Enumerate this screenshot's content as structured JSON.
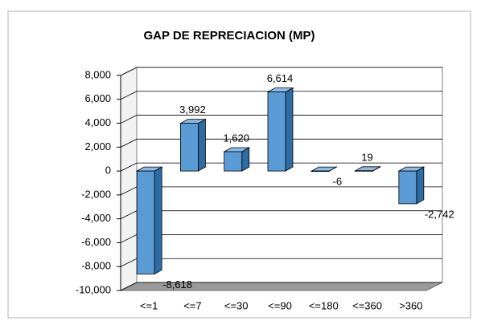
{
  "chart_data": {
    "type": "bar",
    "title": "GAP DE REPRECIACION (MP)",
    "categories": [
      "<=1",
      "<=7",
      "<=30",
      "<=90",
      "<=180",
      "<=360",
      ">360"
    ],
    "values": [
      -8618,
      3992,
      1620,
      6614,
      -6,
      19,
      -2742
    ],
    "value_labels": [
      "-8,618",
      "3,992",
      "1,620",
      "6,614",
      "-6",
      "19",
      "-2,742"
    ],
    "color": "#5b9bd5",
    "ylim": [
      -10000,
      8000
    ],
    "yticks": [
      {
        "value": -10000,
        "label": "-10,000"
      },
      {
        "value": -8000,
        "label": "-8,000"
      },
      {
        "value": -6000,
        "label": "-6,000"
      },
      {
        "value": -4000,
        "label": "-4,000"
      },
      {
        "value": -2000,
        "label": "-2,000"
      },
      0,
      {
        "value": 2000,
        "label": "2,000"
      },
      {
        "value": 4000,
        "label": "4,000"
      },
      {
        "value": 6000,
        "label": "6,000"
      },
      {
        "value": 8000,
        "label": "8,000"
      }
    ],
    "grid": true
  }
}
